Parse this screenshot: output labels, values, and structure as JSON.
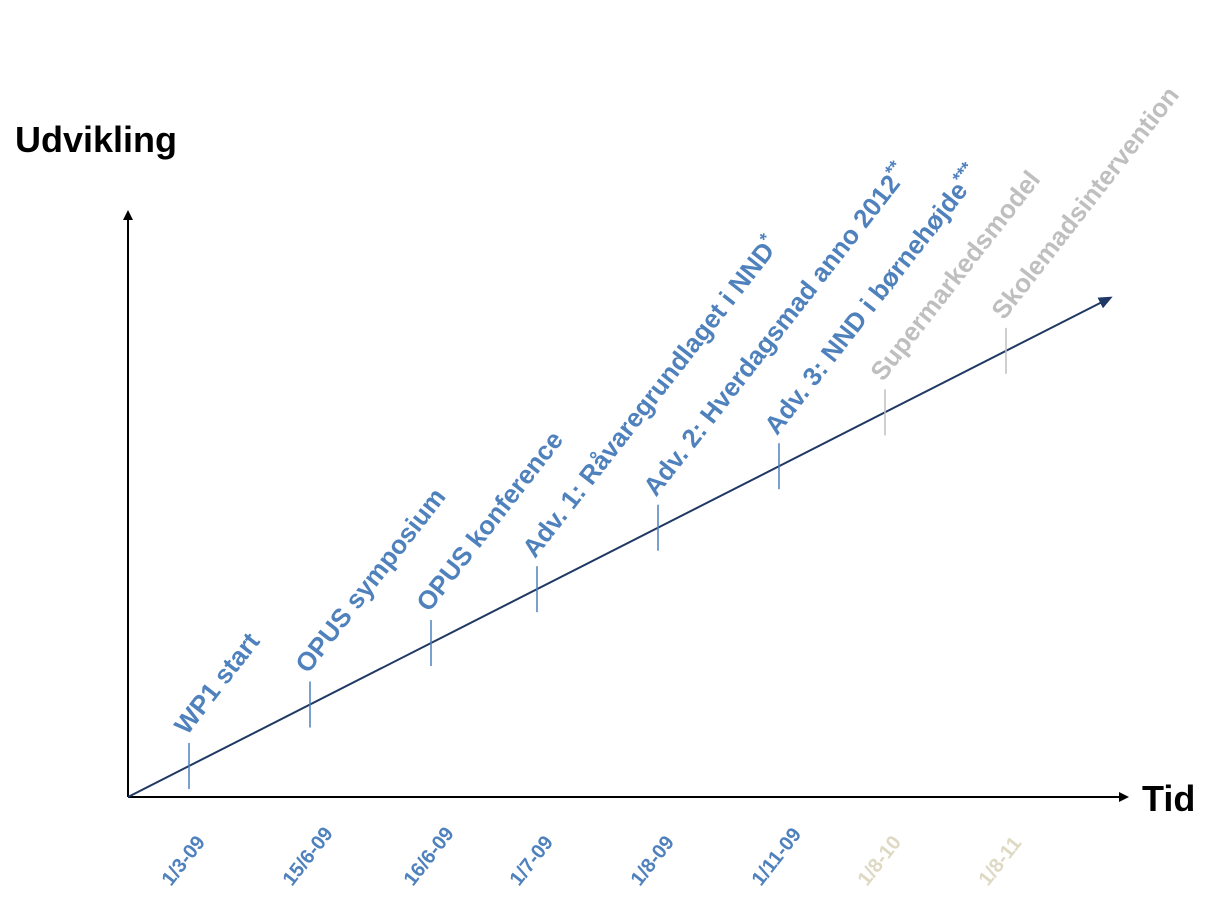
{
  "axes": {
    "y_title": "Udvikling",
    "x_title": "Tid"
  },
  "colors": {
    "axis": "#000000",
    "trend": "#1f3864",
    "active": "#4f81bd",
    "inactive": "#bfbfbf",
    "inactive_date": "#ddd9c3"
  },
  "milestones": [
    {
      "label": "WP1 start",
      "sup": "",
      "date": "1/3-09",
      "status": "active"
    },
    {
      "label": "OPUS symposium",
      "sup": "",
      "date": "15/6-09",
      "status": "active"
    },
    {
      "label": "OPUS konference",
      "sup": "",
      "date": "16/6-09",
      "status": "active"
    },
    {
      "label": "Adv. 1: Råvaregrundlaget i NND",
      "sup": "*",
      "date": "1/7-09",
      "status": "active"
    },
    {
      "label": "Adv. 2: Hverdagsmad anno 2012",
      "sup": "**",
      "date": "1/8-09",
      "status": "active"
    },
    {
      "label": "Adv. 3: NND i børnehøjde",
      "sup": "***",
      "date": "1/11-09",
      "status": "active"
    },
    {
      "label": "Supermarkedsmodel",
      "sup": "",
      "date": "1/8-10",
      "status": "inactive"
    },
    {
      "label": "Skolemadsintervention",
      "sup": "",
      "date": "1/8-11",
      "status": "inactive"
    }
  ]
}
